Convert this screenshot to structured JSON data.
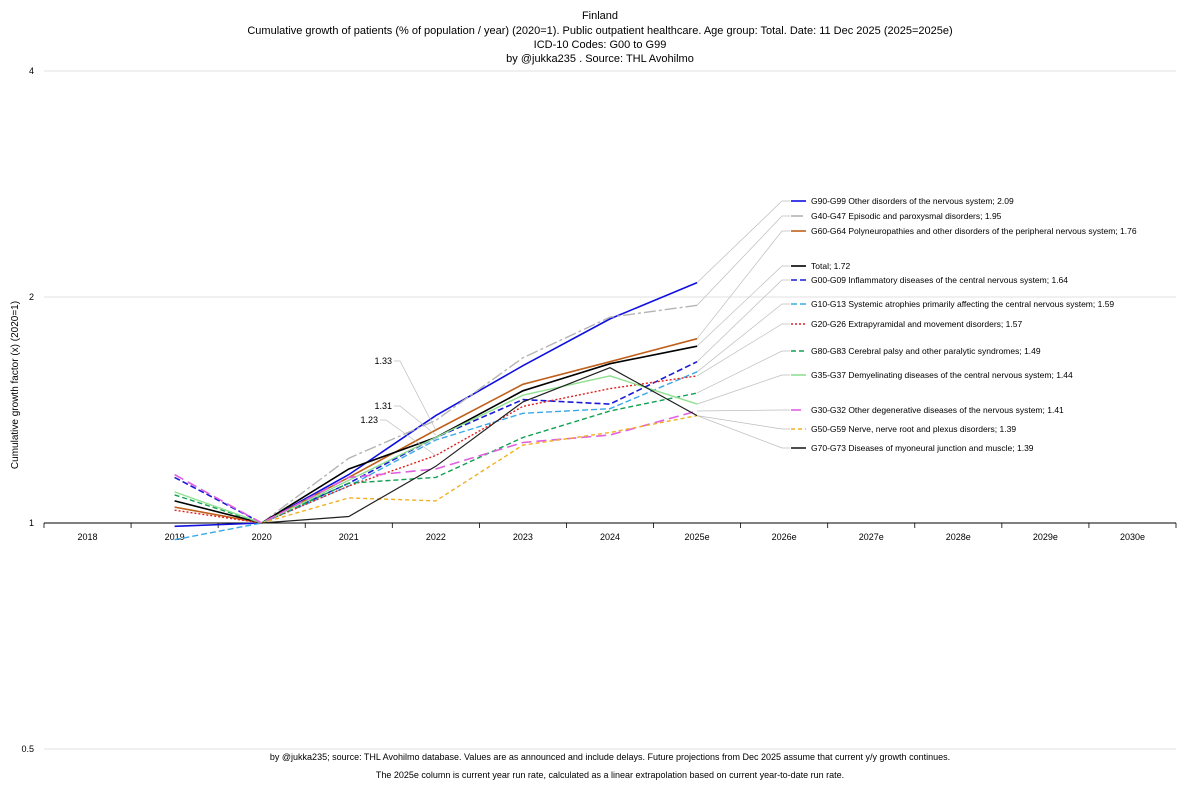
{
  "chart_data": {
    "type": "line",
    "title_lines": [
      "Finland",
      "Cumulative growth of patients (% of population / year) (2020=1).  Public outpatient healthcare. Age group: Total. Date: 11 Dec 2025 (2025=2025e)",
      "ICD-10 Codes: G00 to G99",
      "by @jukka235 . Source: THL Avohilmo"
    ],
    "ylabel": "Cumulative growth factor (x) (2020=1)",
    "xlabel": "",
    "y_scale": "log",
    "ylim": [
      0.5,
      4
    ],
    "y_ticks": [
      0.5,
      1,
      2,
      4
    ],
    "y_tick_labels": [
      "0.5",
      "1",
      "2",
      "4"
    ],
    "categories": [
      "2018",
      "2019",
      "2020",
      "2021",
      "2022",
      "2023",
      "2024",
      "2025e",
      "2026e",
      "2027e",
      "2028e",
      "2029e",
      "2030e"
    ],
    "grid": "horizontal",
    "legend_position": "right",
    "series": [
      {
        "name": "G90-G99 Other disorders of the nervous system; 2.09",
        "color": "#1010e0",
        "dash": "",
        "width": 1.6,
        "values": [
          null,
          0.99,
          1.0,
          1.16,
          1.39,
          1.62,
          1.87,
          2.09,
          null,
          null,
          null,
          null,
          null
        ]
      },
      {
        "name": "G40-G47 Episodic and paroxysmal disorders; 1.95",
        "color": "#b4b4b4",
        "dash": "12,3,3,3",
        "width": 1.4,
        "values": [
          null,
          null,
          1.0,
          1.22,
          1.37,
          1.66,
          1.88,
          1.95,
          null,
          null,
          null,
          null,
          null
        ]
      },
      {
        "name": "G60-G64 Polyneuropathies and other disorders of the peripheral nervous system; 1.76",
        "color": "#c0601a",
        "dash": "",
        "width": 1.6,
        "values": [
          null,
          1.05,
          1.0,
          1.15,
          1.33,
          1.53,
          1.64,
          1.76,
          null,
          null,
          null,
          null,
          null
        ]
      },
      {
        "name": "Total; 1.72",
        "color": "#000000",
        "dash": "",
        "width": 1.6,
        "values": [
          null,
          1.07,
          1.0,
          1.18,
          1.3,
          1.5,
          1.63,
          1.72,
          null,
          null,
          null,
          null,
          null
        ]
      },
      {
        "name": "G00-G09 Inflammatory diseases of the central nervous system; 1.64",
        "color": "#1a1ad8",
        "dash": "6,3",
        "width": 1.6,
        "values": [
          null,
          1.15,
          1.0,
          1.13,
          1.3,
          1.46,
          1.44,
          1.64,
          null,
          null,
          null,
          null,
          null
        ]
      },
      {
        "name": "G10-G13 Systemic atrophies primarily affecting the central nervous system; 1.59",
        "color": "#3aa8e8",
        "dash": "6,3",
        "width": 1.4,
        "values": [
          null,
          0.95,
          1.0,
          1.12,
          1.29,
          1.4,
          1.42,
          1.59,
          null,
          null,
          null,
          null,
          null
        ]
      },
      {
        "name": "G20-G26 Extrapyramidal and movement disorders; 1.57",
        "color": "#e02020",
        "dash": "2,2",
        "width": 1.4,
        "values": [
          null,
          1.04,
          1.0,
          1.12,
          1.23,
          1.43,
          1.51,
          1.57,
          null,
          null,
          null,
          null,
          null
        ]
      },
      {
        "name": "G80-G83 Cerebral palsy and other paralytic syndromes; 1.49",
        "color": "#10a050",
        "dash": "5,3",
        "width": 1.4,
        "values": [
          null,
          1.09,
          1.0,
          1.13,
          1.15,
          1.3,
          1.41,
          1.49,
          null,
          null,
          null,
          null,
          null
        ]
      },
      {
        "name": "G35-G37 Demyelinating diseases of the central nervous system; 1.44",
        "color": "#90e090",
        "dash": "",
        "width": 1.4,
        "values": [
          null,
          1.1,
          1.0,
          1.14,
          1.3,
          1.48,
          1.57,
          1.44,
          null,
          null,
          null,
          null,
          null
        ]
      },
      {
        "name": "G30-G32 Other degenerative diseases of the nervous system; 1.41",
        "color": "#e060e0",
        "dash": "10,5",
        "width": 1.6,
        "values": [
          null,
          1.16,
          1.0,
          1.15,
          1.18,
          1.28,
          1.31,
          1.41,
          null,
          null,
          null,
          null,
          null
        ]
      },
      {
        "name": "G50-G59 Nerve, nerve root and plexus disorders; 1.39",
        "color": "#f0b020",
        "dash": "4,3",
        "width": 1.4,
        "values": [
          null,
          null,
          1.0,
          1.08,
          1.07,
          1.27,
          1.32,
          1.39,
          null,
          null,
          null,
          null,
          null
        ]
      },
      {
        "name": "G70-G73 Diseases of myoneural junction and muscle; 1.39",
        "color": "#202020",
        "dash": "",
        "width": 1.2,
        "values": [
          null,
          null,
          1.0,
          1.02,
          1.19,
          1.45,
          1.61,
          1.39,
          null,
          null,
          null,
          null,
          null
        ]
      }
    ],
    "annotations": [
      {
        "text": "1.33",
        "x": "2022",
        "value": 1.33
      },
      {
        "text": "1.31",
        "x": "2022",
        "value": 1.31
      },
      {
        "text": "1.23",
        "x": "2022",
        "value": 1.23
      }
    ],
    "footnotes": [
      "by @jukka235; source: THL Avohilmo database. Values are as announced and include delays. Future projections from Dec 2025 assume that current y/y growth continues.",
      "The 2025e column is current year run rate, calculated as a linear extrapolation based on current year-to-date run rate."
    ]
  }
}
